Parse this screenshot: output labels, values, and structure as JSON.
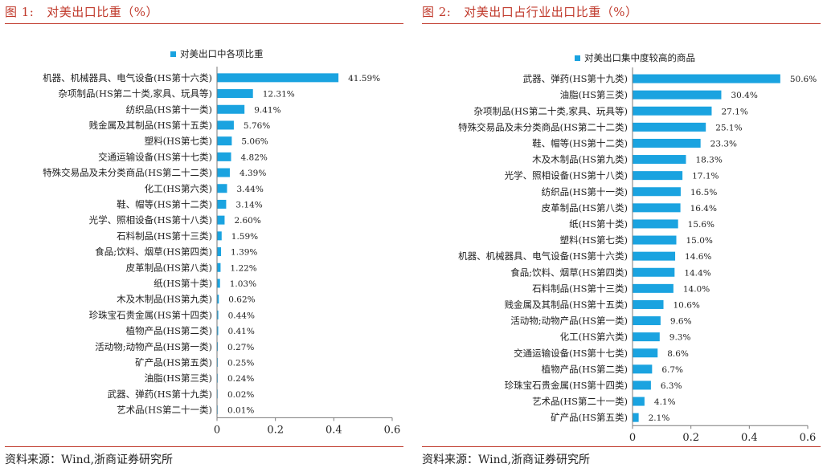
{
  "figures": [
    {
      "fig_label": "图 1:",
      "fig_title": "对美出口比重（%）",
      "source": "资料来源：Wind,浙商证券研究所"
    },
    {
      "fig_label": "图 2:",
      "fig_title": "对美出口占行业出口比重（%）",
      "source": "资料来源：Wind,浙商证券研究所"
    }
  ],
  "colors": {
    "bar": "#1aa3e0",
    "accent": "#c0392b"
  },
  "chart_data": [
    {
      "type": "bar",
      "orientation": "horizontal",
      "series": [
        {
          "name": "对美出口中各项比重"
        }
      ],
      "legend_position": "top",
      "categories": [
        "机器、机械器具、电气设备(HS第十六类)",
        "杂项制品(HS第二十类,家具、玩具等)",
        "纺织品(HS第十一类)",
        "贱金属及其制品(HS第十五类)",
        "塑料(HS第七类)",
        "交通运输设备(HS第十七类)",
        "特殊交易品及未分类商品(HS第二十二类)",
        "化工(HS第六类)",
        "鞋、帽等(HS第十二类)",
        "光学、照相设备(HS第十八类)",
        "石料制品(HS第十三类)",
        "食品;饮料、烟草(HS第四类)",
        "皮革制品(HS第八类)",
        "纸(HS第十类)",
        "木及木制品(HS第九类)",
        "珍珠宝石贵金属(HS第十四类)",
        "植物产品(HS第二类)",
        "活动物;动物产品(HS第一类)",
        "矿产品(HS第五类)",
        "油脂(HS第三类)",
        "武器、弹药(HS第十九类)",
        "艺术品(HS第二十一类)"
      ],
      "values": [
        0.4159,
        0.1231,
        0.0941,
        0.0576,
        0.0506,
        0.0482,
        0.0439,
        0.0344,
        0.0314,
        0.026,
        0.0159,
        0.0139,
        0.0122,
        0.0103,
        0.0062,
        0.0044,
        0.0041,
        0.0027,
        0.0025,
        0.0024,
        0.0002,
        0.0001
      ],
      "value_labels": [
        "41.59%",
        "12.31%",
        "9.41%",
        "5.76%",
        "5.06%",
        "4.82%",
        "4.39%",
        "3.44%",
        "3.14%",
        "2.60%",
        "1.59%",
        "1.39%",
        "1.22%",
        "1.03%",
        "0.62%",
        "0.44%",
        "0.41%",
        "0.27%",
        "0.25%",
        "0.24%",
        "0.02%",
        "0.01%"
      ],
      "xlim": [
        0,
        0.6
      ],
      "xticks": [
        "0",
        "0.2",
        "0.4",
        "0.6"
      ],
      "grid": false
    },
    {
      "type": "bar",
      "orientation": "horizontal",
      "series": [
        {
          "name": "对美出口集中度较高的商品"
        }
      ],
      "legend_position": "top",
      "categories": [
        "武器、弹药(HS第十九类)",
        "油脂(HS第三类)",
        "杂项制品(HS第二十类,家具、玩具等)",
        "特殊交易品及未分类商品(HS第二十二类)",
        "鞋、帽等(HS第十二类)",
        "木及木制品(HS第九类)",
        "光学、照相设备(HS第十八类)",
        "纺织品(HS第十一类)",
        "皮革制品(HS第八类)",
        "纸(HS第十类)",
        "塑料(HS第七类)",
        "机器、机械器具、电气设备(HS第十六类)",
        "食品;饮料、烟草(HS第四类)",
        "石料制品(HS第十三类)",
        "贱金属及其制品(HS第十五类)",
        "活动物;动物产品(HS第一类)",
        "化工(HS第六类)",
        "交通运输设备(HS第十七类)",
        "植物产品(HS第二类)",
        "珍珠宝石贵金属(HS第十四类)",
        "艺术品(HS第二十一类)",
        "矿产品(HS第五类)"
      ],
      "values": [
        0.506,
        0.304,
        0.271,
        0.251,
        0.233,
        0.183,
        0.171,
        0.165,
        0.164,
        0.156,
        0.15,
        0.146,
        0.144,
        0.14,
        0.106,
        0.096,
        0.093,
        0.086,
        0.067,
        0.063,
        0.041,
        0.021
      ],
      "value_labels": [
        "50.6%",
        "30.4%",
        "27.1%",
        "25.1%",
        "23.3%",
        "18.3%",
        "17.1%",
        "16.5%",
        "16.4%",
        "15.6%",
        "15.0%",
        "14.6%",
        "14.4%",
        "14.0%",
        "10.6%",
        "9.6%",
        "9.3%",
        "8.6%",
        "6.7%",
        "6.3%",
        "4.1%",
        "2.1%"
      ],
      "xlim": [
        0,
        0.6
      ],
      "xticks": [
        "0",
        "0.2",
        "0.4",
        "0.6"
      ],
      "grid": false
    }
  ]
}
